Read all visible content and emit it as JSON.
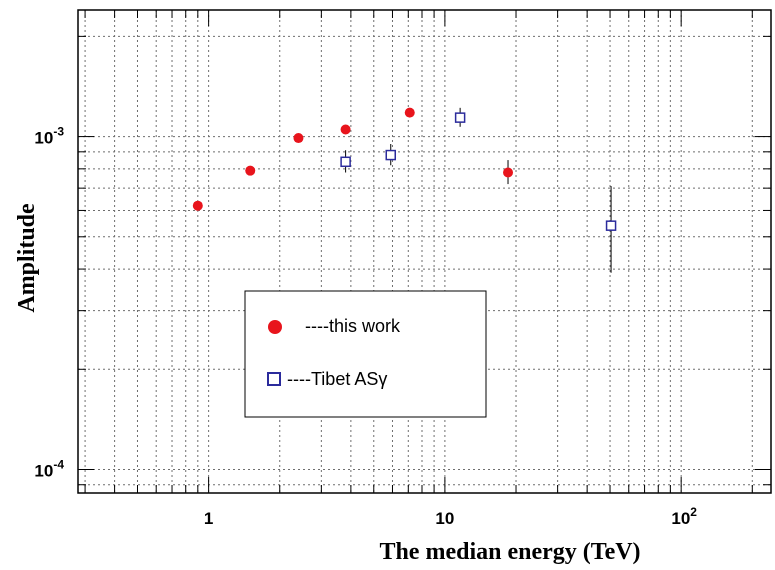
{
  "chart_data": {
    "type": "scatter",
    "xlabel": "The median energy (TeV)",
    "ylabel": "Amplitude",
    "x_scale": "log",
    "y_scale": "log",
    "xlim": [
      0.28,
      240
    ],
    "ylim": [
      8.5e-05,
      0.0024
    ],
    "grid": true,
    "legend_position": "center-left",
    "x_ticks": [
      {
        "value": 1,
        "base": "1",
        "exp": ""
      },
      {
        "value": 10,
        "base": "10",
        "exp": ""
      },
      {
        "value": 100,
        "base": "10",
        "exp": "2"
      }
    ],
    "y_ticks": [
      {
        "value": 0.001,
        "base": "10",
        "exp": "-3"
      },
      {
        "value": 0.0001,
        "base": "10",
        "exp": "-4"
      }
    ],
    "series": [
      {
        "name": "----this work",
        "marker": "circle",
        "color": "#e8141c",
        "points": [
          {
            "x": 0.9,
            "y": 0.00062
          },
          {
            "x": 1.5,
            "y": 0.00079
          },
          {
            "x": 2.4,
            "y": 0.00099
          },
          {
            "x": 3.8,
            "y": 0.00105
          },
          {
            "x": 7.1,
            "y": 0.00118
          },
          {
            "x": 18.5,
            "y": 0.00078,
            "err_low": 0.00072,
            "err_high": 0.00085
          }
        ]
      },
      {
        "name": "----Tibet ASγ",
        "marker": "open-square",
        "color": "#2b2b9c",
        "points": [
          {
            "x": 3.8,
            "y": 0.00084,
            "err_low": 0.00078,
            "err_high": 0.00091
          },
          {
            "x": 5.9,
            "y": 0.00088,
            "err_low": 0.00082,
            "err_high": 0.00095
          },
          {
            "x": 11.6,
            "y": 0.00114,
            "err_low": 0.00107,
            "err_high": 0.00122
          },
          {
            "x": 50.5,
            "y": 0.00054,
            "err_low": 0.00039,
            "err_high": 0.00071
          }
        ]
      }
    ]
  }
}
